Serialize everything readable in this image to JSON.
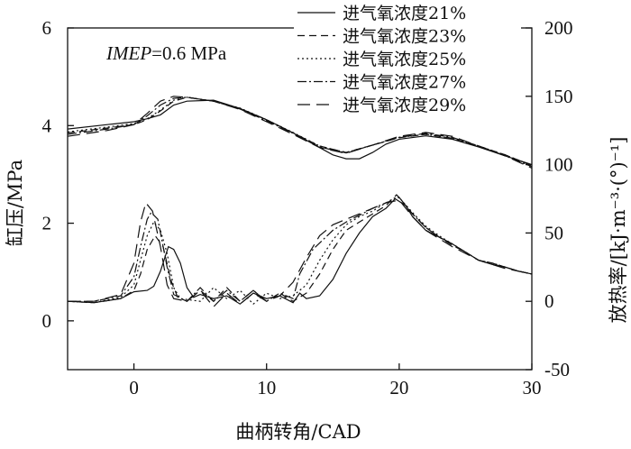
{
  "chart_data": {
    "type": "line",
    "xlabel": "曲柄转角/CAD",
    "ylabel_left": "缸压/MPa",
    "ylabel_right": "放热率/[kJ·m⁻³·(°)⁻¹]",
    "annotation": {
      "italic": "IMEP",
      "rest": "=0.6 MPa"
    },
    "xlim": [
      -5,
      30
    ],
    "ylim_left": [
      -1,
      6
    ],
    "ylim_right": [
      -50,
      200
    ],
    "xticks": [
      0,
      10,
      20,
      30
    ],
    "yticks_left": [
      0,
      2,
      4,
      6
    ],
    "yticks_right": [
      -50,
      0,
      50,
      100,
      150,
      200
    ],
    "grid": false,
    "legend_position": "top-right",
    "series": [
      {
        "name": "进气氧浓度21%",
        "dash": "solid",
        "pressure": [
          [
            -5,
            3.93
          ],
          [
            -2,
            4.02
          ],
          [
            0,
            4.08
          ],
          [
            1,
            4.14
          ],
          [
            2,
            4.22
          ],
          [
            3,
            4.42
          ],
          [
            4,
            4.5
          ],
          [
            6,
            4.52
          ],
          [
            8,
            4.35
          ],
          [
            10,
            4.12
          ],
          [
            12,
            3.85
          ],
          [
            14,
            3.55
          ],
          [
            15,
            3.4
          ],
          [
            16,
            3.32
          ],
          [
            17,
            3.32
          ],
          [
            18,
            3.45
          ],
          [
            19,
            3.62
          ],
          [
            20,
            3.72
          ],
          [
            22,
            3.79
          ],
          [
            24,
            3.72
          ],
          [
            26,
            3.56
          ],
          [
            28,
            3.38
          ],
          [
            30,
            3.2
          ]
        ],
        "heat_release": [
          [
            -5,
            0
          ],
          [
            -3,
            -1
          ],
          [
            -1,
            2
          ],
          [
            0,
            7
          ],
          [
            1,
            8
          ],
          [
            1.5,
            11
          ],
          [
            2,
            22
          ],
          [
            2.6,
            40
          ],
          [
            3,
            38
          ],
          [
            3.5,
            28
          ],
          [
            4,
            10
          ],
          [
            4.5,
            3
          ],
          [
            5,
            5
          ],
          [
            6,
            2
          ],
          [
            7,
            4
          ],
          [
            8,
            -2
          ],
          [
            9,
            6
          ],
          [
            10,
            2
          ],
          [
            11,
            4
          ],
          [
            12,
            -1
          ],
          [
            12.5,
            6
          ],
          [
            13,
            2
          ],
          [
            14,
            4
          ],
          [
            15,
            16
          ],
          [
            16,
            35
          ],
          [
            17,
            50
          ],
          [
            18,
            62
          ],
          [
            19,
            68
          ],
          [
            19.7,
            75
          ],
          [
            20.5,
            70
          ],
          [
            21,
            62
          ],
          [
            22,
            52
          ],
          [
            23,
            47
          ],
          [
            24,
            42
          ],
          [
            25,
            36
          ],
          [
            26,
            30
          ],
          [
            27,
            27
          ],
          [
            28,
            25
          ],
          [
            29,
            22
          ],
          [
            30,
            20
          ]
        ]
      },
      {
        "name": "进气氧浓度23%",
        "dash": "8 5",
        "pressure": [
          [
            -5,
            3.85
          ],
          [
            -2,
            3.95
          ],
          [
            0,
            4.02
          ],
          [
            1,
            4.12
          ],
          [
            2,
            4.3
          ],
          [
            3,
            4.5
          ],
          [
            4,
            4.58
          ],
          [
            6,
            4.5
          ],
          [
            8,
            4.35
          ],
          [
            10,
            4.12
          ],
          [
            12,
            3.85
          ],
          [
            14,
            3.58
          ],
          [
            16,
            3.45
          ],
          [
            18,
            3.6
          ],
          [
            20,
            3.75
          ],
          [
            22,
            3.82
          ],
          [
            24,
            3.74
          ],
          [
            26,
            3.58
          ],
          [
            28,
            3.4
          ],
          [
            30,
            3.18
          ]
        ],
        "heat_release": [
          [
            -5,
            0
          ],
          [
            -3,
            -1
          ],
          [
            -1,
            2
          ],
          [
            0,
            8
          ],
          [
            0.5,
            20
          ],
          [
            1,
            38
          ],
          [
            1.6,
            48
          ],
          [
            2.2,
            40
          ],
          [
            2.8,
            15
          ],
          [
            3.3,
            3
          ],
          [
            4,
            0
          ],
          [
            5,
            8
          ],
          [
            6,
            0
          ],
          [
            7,
            10
          ],
          [
            8,
            0
          ],
          [
            9,
            8
          ],
          [
            10,
            0
          ],
          [
            11,
            6
          ],
          [
            12,
            0
          ],
          [
            13,
            6
          ],
          [
            14,
            20
          ],
          [
            15,
            38
          ],
          [
            16,
            52
          ],
          [
            17,
            58
          ],
          [
            18,
            64
          ],
          [
            19,
            70
          ],
          [
            19.8,
            78
          ],
          [
            20.5,
            70
          ],
          [
            21,
            64
          ],
          [
            22,
            54
          ],
          [
            23,
            47
          ],
          [
            24,
            41
          ],
          [
            25,
            36
          ],
          [
            26,
            30
          ],
          [
            27,
            28
          ],
          [
            28,
            25
          ],
          [
            29,
            22
          ],
          [
            30,
            20
          ]
        ]
      },
      {
        "name": "进气氧浓度25%",
        "dash": "2 3",
        "pressure": [
          [
            -5,
            3.87
          ],
          [
            -2,
            3.97
          ],
          [
            0,
            4.04
          ],
          [
            1,
            4.14
          ],
          [
            2,
            4.32
          ],
          [
            3,
            4.52
          ],
          [
            4,
            4.58
          ],
          [
            6,
            4.5
          ],
          [
            8,
            4.36
          ],
          [
            10,
            4.12
          ],
          [
            12,
            3.86
          ],
          [
            14,
            3.58
          ],
          [
            16,
            3.45
          ],
          [
            18,
            3.6
          ],
          [
            20,
            3.76
          ],
          [
            22,
            3.82
          ],
          [
            24,
            3.74
          ],
          [
            26,
            3.58
          ],
          [
            28,
            3.4
          ],
          [
            30,
            3.18
          ]
        ],
        "heat_release": [
          [
            -5,
            0
          ],
          [
            -3,
            -1
          ],
          [
            -1,
            3
          ],
          [
            0,
            12
          ],
          [
            0.5,
            30
          ],
          [
            1,
            48
          ],
          [
            1.5,
            58
          ],
          [
            2,
            52
          ],
          [
            2.5,
            35
          ],
          [
            3,
            10
          ],
          [
            3.5,
            2
          ],
          [
            5,
            0
          ],
          [
            6,
            10
          ],
          [
            7,
            2
          ],
          [
            8,
            8
          ],
          [
            9,
            -2
          ],
          [
            10,
            6
          ],
          [
            11,
            2
          ],
          [
            12,
            4
          ],
          [
            13,
            12
          ],
          [
            14,
            30
          ],
          [
            15,
            45
          ],
          [
            16,
            56
          ],
          [
            17,
            62
          ],
          [
            18,
            66
          ],
          [
            19,
            72
          ],
          [
            19.9,
            77
          ],
          [
            21,
            65
          ],
          [
            22,
            55
          ],
          [
            23,
            48
          ],
          [
            24,
            42
          ],
          [
            25,
            36
          ],
          [
            26,
            30
          ],
          [
            27,
            28
          ],
          [
            28,
            25
          ],
          [
            29,
            22
          ],
          [
            30,
            20
          ]
        ]
      },
      {
        "name": "进气氧浓度27%",
        "dash": "10 3 2 3",
        "pressure": [
          [
            -5,
            3.82
          ],
          [
            -2,
            3.93
          ],
          [
            0,
            4.02
          ],
          [
            1,
            4.2
          ],
          [
            2,
            4.42
          ],
          [
            3,
            4.56
          ],
          [
            4,
            4.58
          ],
          [
            6,
            4.5
          ],
          [
            8,
            4.34
          ],
          [
            10,
            4.1
          ],
          [
            12,
            3.84
          ],
          [
            14,
            3.56
          ],
          [
            16,
            3.44
          ],
          [
            18,
            3.6
          ],
          [
            20,
            3.76
          ],
          [
            22,
            3.84
          ],
          [
            24,
            3.76
          ],
          [
            26,
            3.58
          ],
          [
            28,
            3.38
          ],
          [
            30,
            3.16
          ]
        ],
        "heat_release": [
          [
            -5,
            0
          ],
          [
            -3,
            0
          ],
          [
            -1,
            4
          ],
          [
            0,
            18
          ],
          [
            0.5,
            40
          ],
          [
            1,
            60
          ],
          [
            1.3,
            65
          ],
          [
            1.8,
            60
          ],
          [
            2.5,
            25
          ],
          [
            3,
            5
          ],
          [
            4,
            0
          ],
          [
            5,
            10
          ],
          [
            6,
            0
          ],
          [
            7,
            8
          ],
          [
            8,
            0
          ],
          [
            9,
            8
          ],
          [
            10,
            0
          ],
          [
            11,
            6
          ],
          [
            12,
            2
          ],
          [
            12.5,
            20
          ],
          [
            13.5,
            38
          ],
          [
            15,
            52
          ],
          [
            16,
            58
          ],
          [
            17,
            63
          ],
          [
            18,
            68
          ],
          [
            19,
            72
          ],
          [
            20,
            76
          ],
          [
            21,
            64
          ],
          [
            22,
            54
          ],
          [
            23,
            47
          ],
          [
            24,
            42
          ],
          [
            25,
            36
          ],
          [
            26,
            30
          ],
          [
            27,
            28
          ],
          [
            28,
            25
          ],
          [
            29,
            22
          ],
          [
            30,
            20
          ]
        ]
      },
      {
        "name": "进气氧浓度29%",
        "dash": "14 7",
        "pressure": [
          [
            -5,
            3.78
          ],
          [
            -2,
            3.9
          ],
          [
            0,
            4.02
          ],
          [
            1,
            4.25
          ],
          [
            2,
            4.5
          ],
          [
            3,
            4.6
          ],
          [
            4,
            4.58
          ],
          [
            6,
            4.5
          ],
          [
            8,
            4.33
          ],
          [
            10,
            4.08
          ],
          [
            12,
            3.82
          ],
          [
            14,
            3.55
          ],
          [
            16,
            3.43
          ],
          [
            18,
            3.6
          ],
          [
            20,
            3.78
          ],
          [
            22,
            3.86
          ],
          [
            24,
            3.78
          ],
          [
            26,
            3.58
          ],
          [
            28,
            3.38
          ],
          [
            30,
            3.13
          ]
        ],
        "heat_release": [
          [
            -5,
            0
          ],
          [
            -3,
            0
          ],
          [
            -1,
            5
          ],
          [
            0,
            28
          ],
          [
            0.5,
            58
          ],
          [
            0.9,
            72
          ],
          [
            1.4,
            66
          ],
          [
            2,
            40
          ],
          [
            2.5,
            12
          ],
          [
            3,
            2
          ],
          [
            4,
            0
          ],
          [
            5,
            8
          ],
          [
            6,
            -4
          ],
          [
            7,
            6
          ],
          [
            8,
            -2
          ],
          [
            9,
            6
          ],
          [
            10,
            0
          ],
          [
            11,
            4
          ],
          [
            12,
            14
          ],
          [
            13,
            32
          ],
          [
            14,
            48
          ],
          [
            15,
            56
          ],
          [
            16,
            60
          ],
          [
            17,
            64
          ],
          [
            18,
            68
          ],
          [
            19,
            72
          ],
          [
            20,
            74
          ],
          [
            21,
            62
          ],
          [
            22,
            52
          ],
          [
            23,
            46
          ],
          [
            24,
            40
          ],
          [
            25,
            35
          ],
          [
            26,
            30
          ],
          [
            27,
            27
          ],
          [
            28,
            24
          ],
          [
            29,
            22
          ],
          [
            30,
            20
          ]
        ]
      }
    ]
  }
}
